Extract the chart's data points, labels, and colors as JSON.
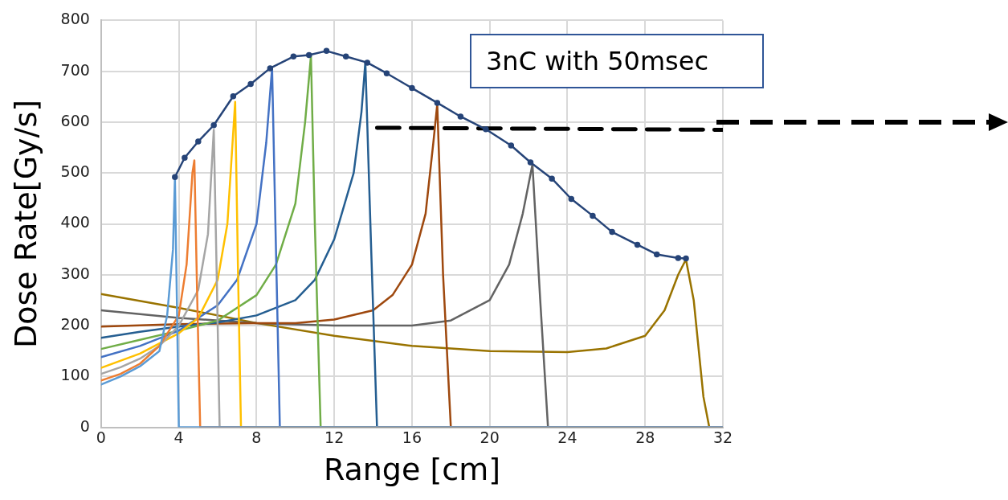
{
  "chart_data": {
    "type": "line",
    "xlabel": "Range [cm]",
    "ylabel": "Dose Rate[Gy/s]",
    "xlim": [
      0,
      32
    ],
    "xticks": [
      0,
      4,
      8,
      12,
      16,
      20,
      24,
      28,
      32
    ],
    "ylim": [
      0,
      800
    ],
    "yticks": [
      0,
      100,
      200,
      300,
      400,
      500,
      600,
      700,
      800
    ],
    "grid": true,
    "legend": false,
    "line_style": "solid",
    "annotations": [
      "3nC with 50msec"
    ],
    "series": [
      {
        "color": "#5b9bd5",
        "marker": "none",
        "x": [
          0,
          1,
          2,
          3,
          3.4,
          3.7,
          3.8,
          3.9,
          4.0,
          32
        ],
        "values": [
          84,
          100,
          120,
          150,
          220,
          350,
          490,
          250,
          0,
          0
        ]
      },
      {
        "color": "#ed7d31",
        "marker": "none",
        "x": [
          0,
          1,
          2,
          3,
          4,
          4.4,
          4.7,
          4.8,
          4.95,
          5.1,
          32
        ],
        "values": [
          92,
          105,
          125,
          160,
          220,
          320,
          500,
          525,
          250,
          0,
          0
        ]
      },
      {
        "color": "#a5a5a5",
        "marker": "none",
        "x": [
          0,
          1,
          2,
          3,
          4,
          5,
          5.5,
          5.8,
          5.95,
          6.1,
          32
        ],
        "values": [
          105,
          118,
          135,
          160,
          200,
          270,
          380,
          585,
          300,
          0,
          0
        ]
      },
      {
        "color": "#ffc000",
        "marker": "none",
        "x": [
          0,
          2,
          4,
          5,
          6,
          6.5,
          6.8,
          6.9,
          7.05,
          7.2,
          32
        ],
        "values": [
          117,
          145,
          185,
          215,
          290,
          400,
          580,
          640,
          300,
          0,
          0
        ]
      },
      {
        "color": "#4472c4",
        "marker": "none",
        "x": [
          0,
          2,
          4,
          6,
          7,
          8,
          8.5,
          8.8,
          9.0,
          9.2,
          32
        ],
        "values": [
          138,
          160,
          190,
          240,
          290,
          400,
          560,
          706,
          350,
          0,
          0
        ]
      },
      {
        "color": "#70ad47",
        "marker": "none",
        "x": [
          0,
          2,
          4,
          6,
          8,
          9,
          10,
          10.5,
          10.8,
          11.0,
          11.3,
          32
        ],
        "values": [
          154,
          172,
          190,
          210,
          260,
          320,
          440,
          600,
          730,
          400,
          0,
          0
        ]
      },
      {
        "color": "#255e91",
        "marker": "none",
        "x": [
          0,
          2,
          4,
          6,
          8,
          10,
          11,
          12,
          13,
          13.4,
          13.6,
          13.9,
          14.2,
          32
        ],
        "values": [
          176,
          188,
          198,
          206,
          220,
          250,
          290,
          370,
          500,
          620,
          718,
          350,
          0,
          0
        ]
      },
      {
        "color": "#9e480e",
        "marker": "none",
        "x": [
          0,
          4,
          8,
          10,
          12,
          14,
          15,
          16,
          16.7,
          17.1,
          17.3,
          17.6,
          18.0,
          32
        ],
        "values": [
          198,
          203,
          205,
          205,
          212,
          230,
          260,
          320,
          420,
          560,
          635,
          300,
          0,
          0
        ]
      },
      {
        "color": "#636363",
        "marker": "none",
        "x": [
          0,
          4,
          8,
          12,
          16,
          18,
          20,
          21,
          21.7,
          22.2,
          22.6,
          23.0,
          32
        ],
        "values": [
          230,
          215,
          205,
          200,
          200,
          210,
          250,
          320,
          420,
          517,
          250,
          0,
          0
        ]
      },
      {
        "color": "#997300",
        "marker": "none",
        "x": [
          0,
          4,
          8,
          12,
          16,
          20,
          24,
          26,
          28,
          29,
          29.7,
          30.1,
          30.5,
          31,
          31.3,
          32
        ],
        "values": [
          262,
          235,
          205,
          180,
          160,
          150,
          148,
          155,
          180,
          230,
          300,
          330,
          250,
          60,
          0,
          0
        ]
      },
      {
        "type": "line",
        "color": "#000000",
        "marker": "none",
        "line_style": "dashed",
        "x": [
          14.2,
          32
        ],
        "values": [
          589,
          585
        ]
      },
      {
        "color": "#264478",
        "marker": "circle",
        "x": [
          3.8,
          4.3,
          5.0,
          5.8,
          6.8,
          7.7,
          8.7,
          9.9,
          10.7,
          11.6,
          12.6,
          13.7,
          14.7,
          16.0,
          17.3,
          18.5,
          19.8,
          21.1,
          22.1,
          23.2,
          24.2,
          25.3,
          26.3,
          27.6,
          28.6,
          29.7,
          30.1
        ],
        "values": [
          492,
          530,
          562,
          594,
          651,
          675,
          706,
          729,
          732,
          740,
          729,
          717,
          696,
          667,
          638,
          611,
          586,
          554,
          521,
          489,
          449,
          416,
          384,
          359,
          340,
          333,
          332
        ]
      }
    ]
  }
}
